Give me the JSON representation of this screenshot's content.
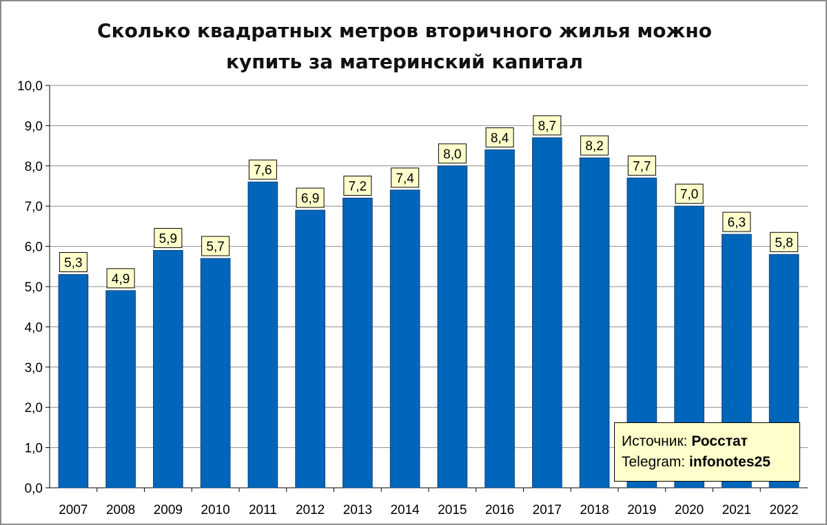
{
  "chart_data": {
    "type": "bar",
    "title_lines": [
      "Сколько квадратных метров вторичного жилья можно",
      "купить за материнский капитал"
    ],
    "categories": [
      "2007",
      "2008",
      "2009",
      "2010",
      "2011",
      "2012",
      "2013",
      "2014",
      "2015",
      "2016",
      "2017",
      "2018",
      "2019",
      "2020",
      "2021",
      "2022"
    ],
    "values": [
      5.3,
      4.9,
      5.9,
      5.7,
      7.6,
      6.9,
      7.2,
      7.4,
      8.0,
      8.4,
      8.7,
      8.2,
      7.7,
      7.0,
      6.3,
      5.8
    ],
    "value_labels": [
      "5,3",
      "4,9",
      "5,9",
      "5,7",
      "7,6",
      "6,9",
      "7,2",
      "7,4",
      "8,0",
      "8,4",
      "8,7",
      "8,2",
      "7,7",
      "7,0",
      "6,3",
      "5,8"
    ],
    "y_ticks": [
      "0,0",
      "1,0",
      "2,0",
      "3,0",
      "4,0",
      "5,0",
      "6,0",
      "7,0",
      "8,0",
      "9,0",
      "10,0"
    ],
    "ylim": [
      0,
      10
    ],
    "grid": true,
    "bar_color": "#0066bb",
    "label_box_color": "#ffffcc"
  },
  "source_box": {
    "source_label": "Источник: ",
    "source_value": "Росстат",
    "telegram_label": "Telegram: ",
    "telegram_value": "infonotes25"
  }
}
